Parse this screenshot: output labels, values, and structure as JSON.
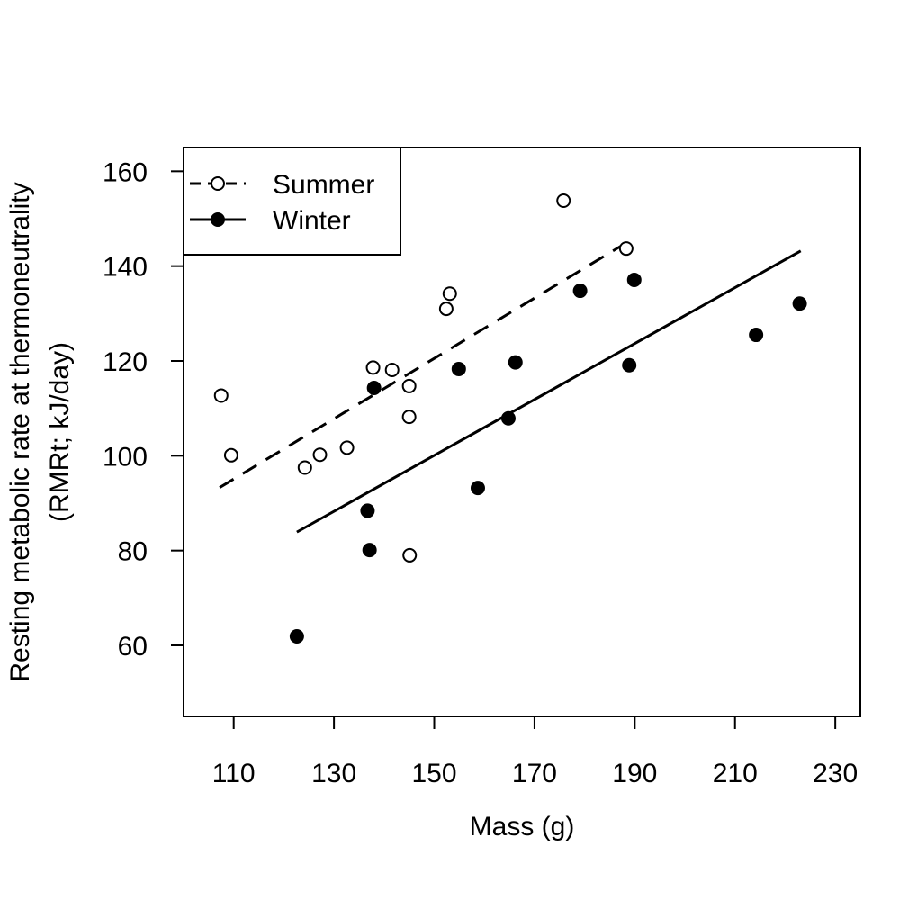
{
  "chart_data": {
    "type": "scatter",
    "xlabel": "Mass (g)",
    "ylabel_lines": [
      "Resting metabolic rate at thermoneutrality",
      "(RMRt; kJ/day)"
    ],
    "xlim": [
      100,
      235
    ],
    "ylim": [
      45,
      165
    ],
    "xticks": [
      110,
      130,
      150,
      170,
      190,
      210,
      230
    ],
    "yticks": [
      60,
      80,
      100,
      120,
      140,
      160
    ],
    "grid": false,
    "legend_position": "top-left",
    "series": [
      {
        "name": "Summer",
        "marker": "open-circle",
        "line_style": "dashed",
        "points": [
          {
            "x": 107.5,
            "y": 112.7
          },
          {
            "x": 109.5,
            "y": 100.1
          },
          {
            "x": 124.2,
            "y": 97.5
          },
          {
            "x": 127.2,
            "y": 100.2
          },
          {
            "x": 132.6,
            "y": 101.7
          },
          {
            "x": 137.8,
            "y": 118.6
          },
          {
            "x": 141.6,
            "y": 118.1
          },
          {
            "x": 145.0,
            "y": 114.7
          },
          {
            "x": 145.0,
            "y": 108.2
          },
          {
            "x": 145.1,
            "y": 79.0
          },
          {
            "x": 152.4,
            "y": 131.0
          },
          {
            "x": 153.1,
            "y": 134.2
          },
          {
            "x": 175.8,
            "y": 153.8
          },
          {
            "x": 188.3,
            "y": 143.7
          }
        ],
        "fit": {
          "x1": 107.2,
          "y1": 93.3,
          "x2": 188.3,
          "y2": 144.9
        }
      },
      {
        "name": "Winter",
        "marker": "filled-circle",
        "line_style": "solid",
        "points": [
          {
            "x": 122.6,
            "y": 61.9
          },
          {
            "x": 136.7,
            "y": 88.4
          },
          {
            "x": 137.1,
            "y": 80.1
          },
          {
            "x": 138.0,
            "y": 114.3
          },
          {
            "x": 154.9,
            "y": 118.3
          },
          {
            "x": 158.7,
            "y": 93.2
          },
          {
            "x": 164.8,
            "y": 107.9
          },
          {
            "x": 166.2,
            "y": 119.7
          },
          {
            "x": 179.1,
            "y": 134.8
          },
          {
            "x": 188.9,
            "y": 119.1
          },
          {
            "x": 189.9,
            "y": 137.1
          },
          {
            "x": 214.2,
            "y": 125.5
          },
          {
            "x": 222.9,
            "y": 132.1
          }
        ],
        "fit": {
          "x1": 122.6,
          "y1": 83.9,
          "x2": 223.1,
          "y2": 143.2
        }
      }
    ]
  }
}
